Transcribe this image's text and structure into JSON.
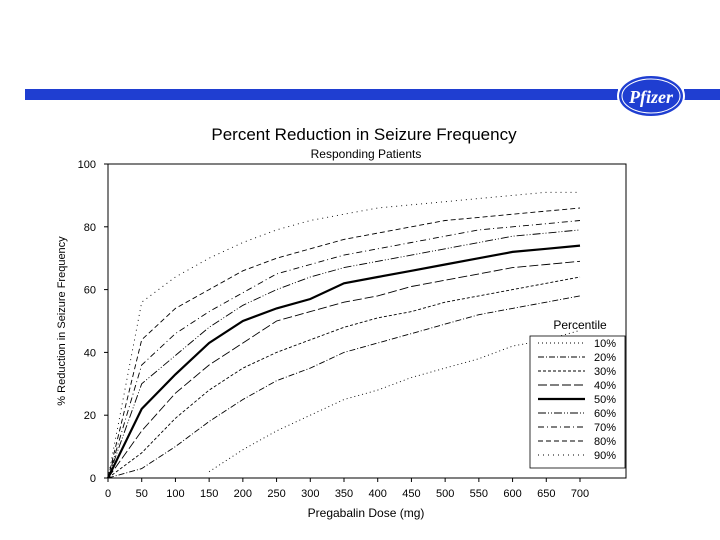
{
  "brand": {
    "logo_text": "Pfizer",
    "bar_color": "#1f3ed1",
    "logo_color": "#1f3ed1"
  },
  "chart_data": {
    "type": "line",
    "title": "Percent Reduction in Seizure Frequency",
    "subtitle": "Responding Patients",
    "xlabel": "Pregabalin Dose (mg)",
    "ylabel": "% Reduction in Seizure Frequency",
    "xlim": [
      0,
      700
    ],
    "ylim": [
      0,
      100
    ],
    "x_ticks": [
      0,
      50,
      100,
      150,
      200,
      250,
      300,
      350,
      400,
      450,
      500,
      550,
      600,
      650,
      700
    ],
    "y_ticks": [
      0,
      20,
      40,
      60,
      80,
      100
    ],
    "grid": false,
    "legend": {
      "title": "Percentile",
      "position": "bottom-right"
    },
    "x": [
      0,
      50,
      100,
      150,
      200,
      250,
      300,
      350,
      400,
      450,
      500,
      550,
      600,
      650,
      700
    ],
    "series": [
      {
        "name": "10%",
        "dash": "1,3",
        "width": 0.9,
        "values": [
          null,
          null,
          null,
          2,
          9,
          15,
          20,
          25,
          28,
          32,
          35,
          38,
          42,
          44,
          47
        ]
      },
      {
        "name": "20%",
        "dash": "6,2,1,2",
        "width": 0.9,
        "values": [
          0,
          3,
          10,
          18,
          25,
          31,
          35,
          40,
          43,
          46,
          49,
          52,
          54,
          56,
          58
        ]
      },
      {
        "name": "30%",
        "dash": "3,2",
        "width": 0.9,
        "values": [
          0,
          8,
          19,
          28,
          35,
          40,
          44,
          48,
          51,
          53,
          56,
          58,
          60,
          62,
          64
        ]
      },
      {
        "name": "40%",
        "dash": "9,3",
        "width": 0.9,
        "values": [
          0,
          15,
          27,
          36,
          43,
          50,
          53,
          56,
          58,
          61,
          63,
          65,
          67,
          68,
          69
        ]
      },
      {
        "name": "50%",
        "dash": "",
        "width": 2.2,
        "values": [
          0,
          22,
          33,
          43,
          50,
          54,
          57,
          62,
          64,
          66,
          68,
          70,
          72,
          73,
          74
        ]
      },
      {
        "name": "60%",
        "dash": "8,2,1,2,1,2",
        "width": 0.9,
        "values": [
          0,
          30,
          39,
          48,
          55,
          60,
          64,
          67,
          69,
          71,
          73,
          75,
          77,
          78,
          79
        ]
      },
      {
        "name": "70%",
        "dash": "6,3,1,3",
        "width": 0.9,
        "values": [
          0,
          36,
          46,
          53,
          59,
          65,
          68,
          71,
          73,
          75,
          77,
          79,
          80,
          81,
          82
        ]
      },
      {
        "name": "80%",
        "dash": "5,3",
        "width": 0.9,
        "values": [
          0,
          44,
          54,
          60,
          66,
          70,
          73,
          76,
          78,
          80,
          82,
          83,
          84,
          85,
          86
        ]
      },
      {
        "name": "90%",
        "dash": "1,4",
        "width": 0.9,
        "values": [
          0,
          56,
          64,
          70,
          75,
          79,
          82,
          84,
          86,
          87,
          88,
          89,
          90,
          91,
          91
        ]
      }
    ]
  }
}
